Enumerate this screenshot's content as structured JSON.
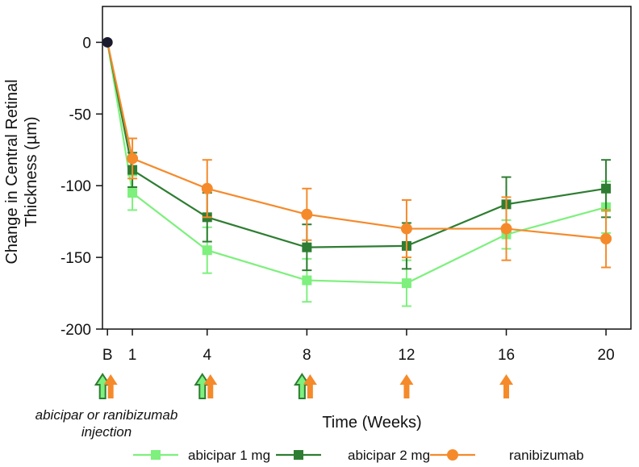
{
  "chart_data": {
    "type": "line",
    "title": "",
    "xlabel": "Time (Weeks)",
    "ylabel_lines": [
      "Change in Central Retinal",
      "Thickness (µm)"
    ],
    "x_ticks": [
      {
        "label": "B",
        "value": 0
      },
      {
        "label": "1",
        "value": 1
      },
      {
        "label": "4",
        "value": 4
      },
      {
        "label": "8",
        "value": 8
      },
      {
        "label": "12",
        "value": 12
      },
      {
        "label": "16",
        "value": 16
      },
      {
        "label": "20",
        "value": 20
      }
    ],
    "xlim": [
      -0.2,
      21
    ],
    "y_ticks": [
      0,
      -50,
      -100,
      -150,
      -200
    ],
    "ylim": [
      -200,
      25
    ],
    "baseline_point": {
      "x": 0,
      "y": 0,
      "color": "#1a1a2e"
    },
    "series": [
      {
        "name": "abicipar 1 mg",
        "color": "#7df07d",
        "marker": "square",
        "x": [
          0,
          1,
          4,
          8,
          12,
          16,
          20
        ],
        "values": [
          0,
          -105,
          -145,
          -166,
          -168,
          -134,
          -115
        ],
        "err_low": [
          0,
          12,
          16,
          15,
          16,
          10,
          18
        ],
        "err_high": [
          0,
          12,
          16,
          15,
          16,
          10,
          18
        ]
      },
      {
        "name": "abicipar 2 mg",
        "color": "#2e7d32",
        "marker": "square",
        "x": [
          0,
          1,
          4,
          8,
          12,
          16,
          20
        ],
        "values": [
          0,
          -89,
          -122,
          -143,
          -142,
          -113,
          -102
        ],
        "err_low": [
          0,
          12,
          17,
          16,
          16,
          19,
          20
        ],
        "err_high": [
          0,
          12,
          17,
          16,
          16,
          19,
          20
        ]
      },
      {
        "name": "ranibizumab",
        "color": "#f58a2b",
        "marker": "circle",
        "x": [
          0,
          1,
          4,
          8,
          12,
          16,
          20
        ],
        "values": [
          0,
          -81,
          -102,
          -120,
          -130,
          -130,
          -137
        ],
        "err_low": [
          0,
          14,
          20,
          18,
          20,
          22,
          20
        ],
        "err_high": [
          0,
          14,
          20,
          18,
          20,
          22,
          20
        ]
      }
    ],
    "legend_position": "bottom",
    "injection_annotation": [
      "abicipar or ranibizumab",
      "injection"
    ],
    "injections": [
      {
        "week": 0,
        "arrows": [
          "abicipar",
          "ranibizumab"
        ]
      },
      {
        "week": 4,
        "arrows": [
          "abicipar",
          "ranibizumab"
        ]
      },
      {
        "week": 8,
        "arrows": [
          "abicipar",
          "ranibizumab"
        ]
      },
      {
        "week": 12,
        "arrows": [
          "ranibizumab"
        ]
      },
      {
        "week": 16,
        "arrows": [
          "ranibizumab"
        ]
      }
    ],
    "arrow_colors": {
      "abicipar_fill": "#7df07d",
      "abicipar_stroke": "#2e7d32",
      "ranibizumab_fill": "#f58a2b"
    }
  }
}
